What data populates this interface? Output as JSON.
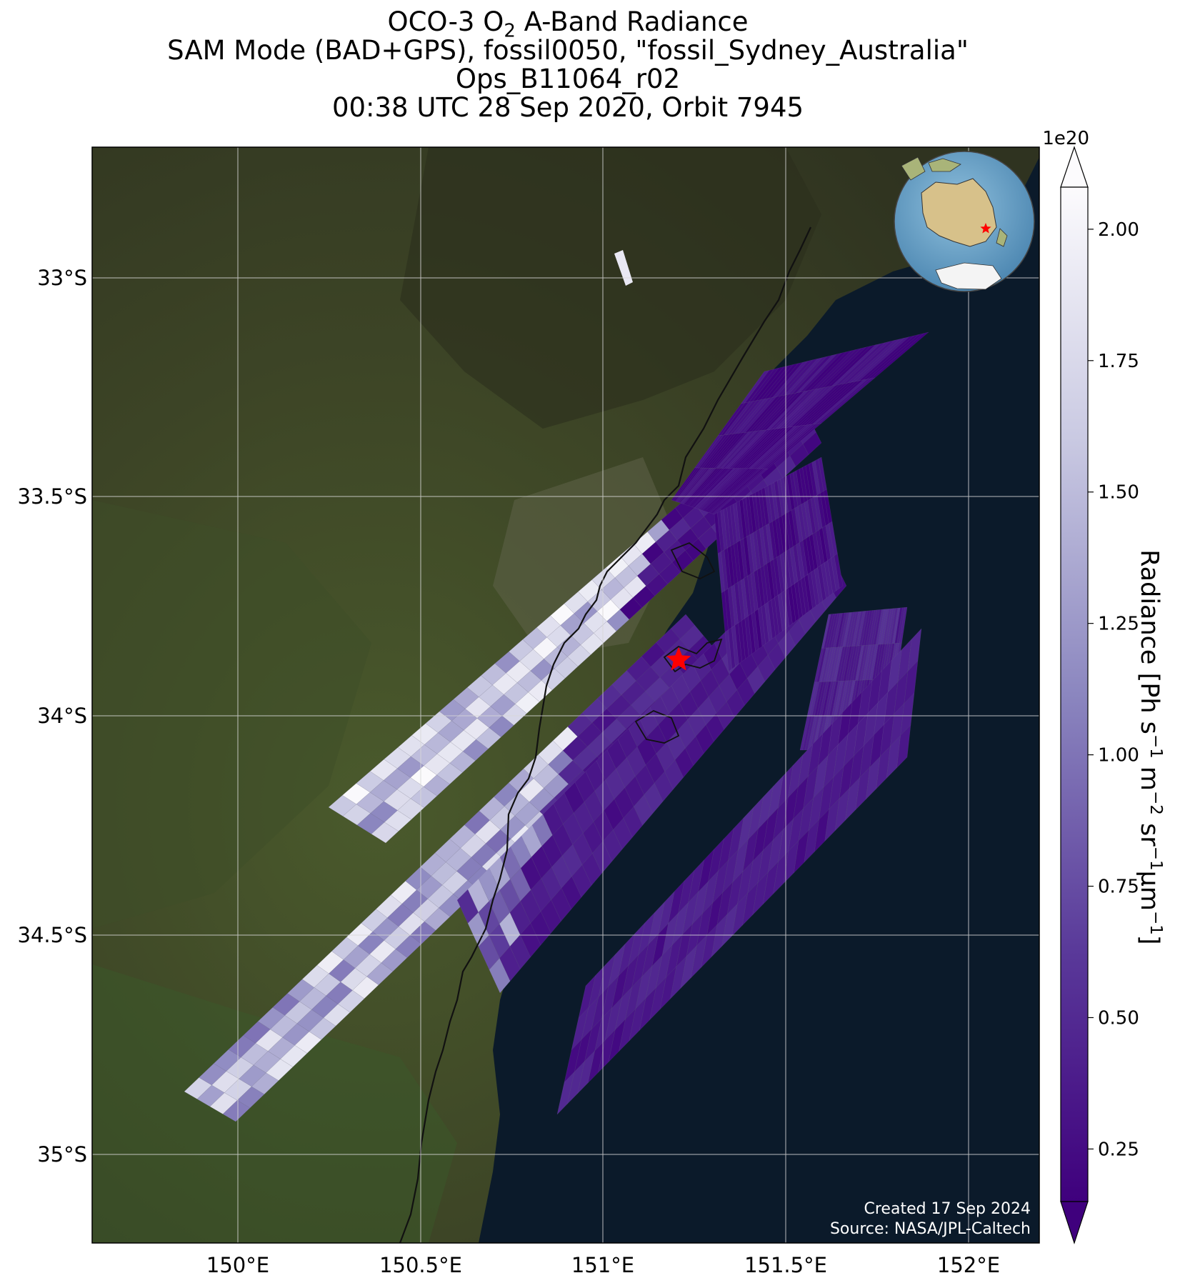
{
  "title": {
    "line1_pre": "OCO-3 O",
    "line1_sub": "2",
    "line1_post": " A-Band Radiance",
    "line2": "SAM Mode (BAD+GPS), fossil0050, \"fossil_Sydney_Australia\"",
    "line3": "Ops_B11064_r02",
    "line4": "00:38 UTC 28 Sep 2020, Orbit 7945"
  },
  "axes": {
    "lat_labels": [
      "33°S",
      "33.5°S",
      "34°S",
      "34.5°S",
      "35°S"
    ],
    "lon_labels": [
      "150°E",
      "150.5°E",
      "151°E",
      "151.5°E",
      "152°E"
    ],
    "lon_range": [
      149.6,
      152.2
    ],
    "lat_range": [
      -35.2,
      -32.7
    ],
    "gridlines": true
  },
  "colorbar": {
    "exponent_label": "1e20",
    "tick_labels": [
      "0.25",
      "0.50",
      "0.75",
      "1.00",
      "1.25",
      "1.50",
      "1.75",
      "2.00"
    ],
    "tick_values": [
      0.25,
      0.5,
      0.75,
      1.0,
      1.25,
      1.5,
      1.75,
      2.0
    ],
    "range": [
      0.15,
      2.08
    ],
    "extend": "both",
    "colormap": "Purples_r",
    "label_parts": [
      "Radiance [Ph s",
      "−1",
      " m",
      "−2",
      " sr",
      "−1",
      "µm",
      "−1",
      "]"
    ]
  },
  "credits": {
    "created": "Created 17 Sep 2024",
    "source": "Source: NASA/JPL-Caltech"
  },
  "target": {
    "name": "fossil_Sydney_Australia",
    "lon": 151.21,
    "lat": -33.87,
    "color": "#ff0000"
  },
  "colors": {
    "land": "#3b4226",
    "ocean": "#0b1a2a",
    "high_radiance": "#f4f3f9",
    "low_radiance": "#3f007d"
  }
}
